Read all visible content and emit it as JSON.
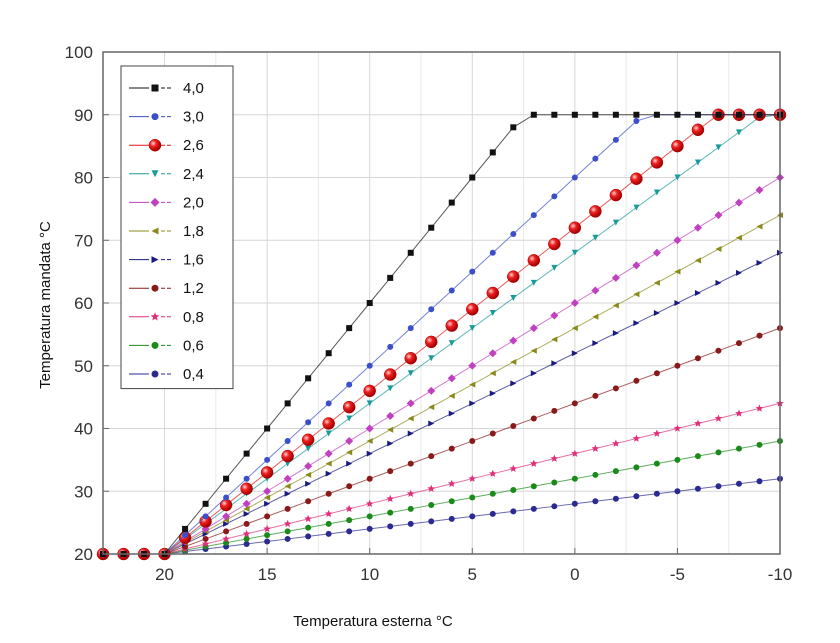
{
  "chart_data": {
    "type": "line",
    "title": "",
    "xlabel": "Temperatura esterna °C",
    "ylabel": "Temperatura mandata °C",
    "xlim": [
      23,
      -10
    ],
    "ylim": [
      20,
      100
    ],
    "x_reversed": true,
    "xticks": [
      20,
      15,
      10,
      5,
      0,
      -5,
      -10
    ],
    "xtick_labels": [
      "20",
      "15",
      "10",
      "5",
      "0",
      "-5",
      "-10"
    ],
    "yticks": [
      20,
      30,
      40,
      50,
      60,
      70,
      80,
      90,
      100
    ],
    "ytick_labels": [
      "20",
      "30",
      "40",
      "50",
      "60",
      "70",
      "80",
      "90",
      "100"
    ],
    "grid": true,
    "legend_position": "top-left",
    "x_step": 1,
    "y_base_at_20C": 20,
    "y_cap": 90,
    "series": [
      {
        "name": "4,0",
        "slope": 4.0,
        "color": "#111111",
        "marker": "square"
      },
      {
        "name": "3,0",
        "slope": 3.0,
        "color": "#3a4fc8",
        "marker": "circle"
      },
      {
        "name": "2,6",
        "slope": 2.6,
        "color": "#e01818",
        "marker": "sphere"
      },
      {
        "name": "2,4",
        "slope": 2.4,
        "color": "#1a9a9a",
        "marker": "triangle-down"
      },
      {
        "name": "2,0",
        "slope": 2.0,
        "color": "#c040c0",
        "marker": "diamond"
      },
      {
        "name": "1,8",
        "slope": 1.8,
        "color": "#8a8a1a",
        "marker": "triangle-left"
      },
      {
        "name": "1,6",
        "slope": 1.6,
        "color": "#1a1a80",
        "marker": "triangle-right"
      },
      {
        "name": "1,2",
        "slope": 1.2,
        "color": "#8a1a1a",
        "marker": "circle"
      },
      {
        "name": "0,8",
        "slope": 0.8,
        "color": "#e0307a",
        "marker": "star"
      },
      {
        "name": "0,6",
        "slope": 0.6,
        "color": "#1a8a1a",
        "marker": "circle"
      },
      {
        "name": "0,4",
        "slope": 0.4,
        "color": "#2a2a90",
        "marker": "circle"
      }
    ]
  }
}
